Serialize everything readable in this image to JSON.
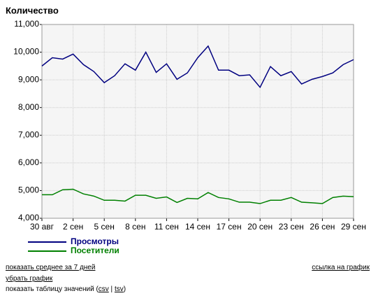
{
  "chart_data": {
    "type": "line",
    "title": "Количество",
    "categories": [
      "30 авг",
      null,
      null,
      "2 сен",
      null,
      null,
      "5 сен",
      null,
      null,
      "8 сен",
      null,
      null,
      "11 сен",
      null,
      null,
      "14 сен",
      null,
      null,
      "17 сен",
      null,
      null,
      "20 сен",
      null,
      null,
      "23 сен",
      null,
      null,
      "26 сен",
      null,
      null,
      "29 сен"
    ],
    "series": [
      {
        "name": "Просмотры",
        "color": "#000080",
        "values": [
          9500,
          9800,
          9750,
          9930,
          9550,
          9300,
          8900,
          9150,
          9580,
          9350,
          10000,
          9270,
          9580,
          9020,
          9250,
          9800,
          10220,
          9350,
          9350,
          9150,
          9180,
          8730,
          9480,
          9150,
          9300,
          8850,
          9020,
          9120,
          9250,
          9550,
          9730
        ]
      },
      {
        "name": "Посетители",
        "color": "#008000",
        "values": [
          4850,
          4850,
          5030,
          5050,
          4880,
          4800,
          4650,
          4650,
          4620,
          4830,
          4830,
          4720,
          4770,
          4570,
          4720,
          4700,
          4930,
          4750,
          4700,
          4580,
          4580,
          4530,
          4650,
          4650,
          4750,
          4580,
          4560,
          4530,
          4750,
          4800,
          4780
        ]
      }
    ],
    "ylim": [
      4000,
      11000
    ],
    "yticks": [
      {
        "value": 4000,
        "label": "4,000"
      },
      {
        "value": 5000,
        "label": "5,000"
      },
      {
        "value": 6000,
        "label": "6,000"
      },
      {
        "value": 7000,
        "label": "7,000"
      },
      {
        "value": 8000,
        "label": "8,000"
      },
      {
        "value": 9000,
        "label": "9,000"
      },
      {
        "value": 10000,
        "label": "10,000"
      },
      {
        "value": 11000,
        "label": "11,000"
      }
    ],
    "grid": true
  },
  "links": {
    "average": "показать среднее за 7 дней",
    "remove": "убрать график",
    "table_prefix": "показать таблицу значений (",
    "csv": "csv",
    "separator": " | ",
    "tsv": "tsv",
    "table_suffix": ")",
    "link": "ссылка на график"
  }
}
